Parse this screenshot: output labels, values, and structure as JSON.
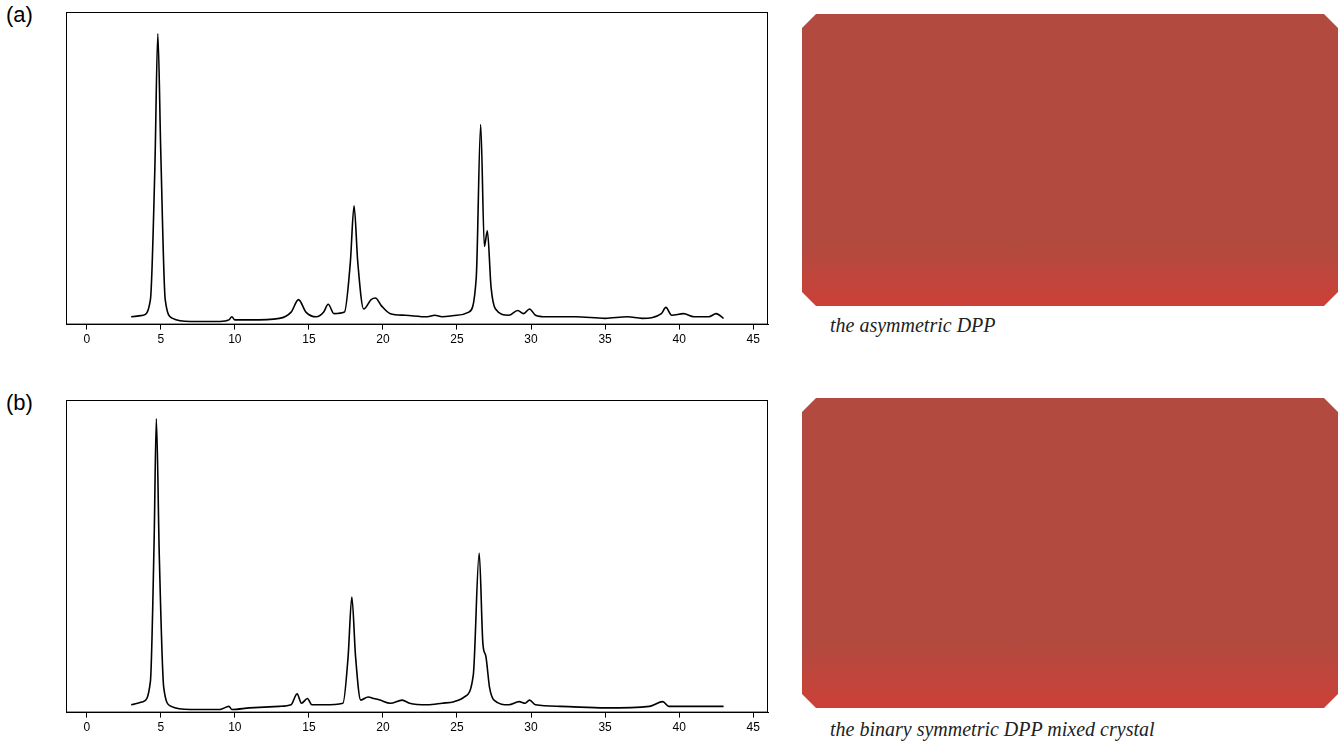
{
  "chart_data": [
    {
      "type": "line",
      "panel": "(a)",
      "color": "#000000",
      "x": [
        3.0,
        3.8,
        4.3,
        4.6,
        4.8,
        5.0,
        5.3,
        5.8,
        7.0,
        9.0,
        9.6,
        9.8,
        10.0,
        11.0,
        13.0,
        13.8,
        14.3,
        14.8,
        15.5,
        16.0,
        16.3,
        16.7,
        17.4,
        17.8,
        18.05,
        18.3,
        18.7,
        19.2,
        19.5,
        19.9,
        20.5,
        21.5,
        23.0,
        23.5,
        24.0,
        25.0,
        25.8,
        26.3,
        26.6,
        26.85,
        27.05,
        27.3,
        27.6,
        28.5,
        29.1,
        29.5,
        29.9,
        30.3,
        31.0,
        33.0,
        35.0,
        36.5,
        37.5,
        38.8,
        39.1,
        39.5,
        40.3,
        41.0,
        42.0,
        42.5,
        43.0
      ],
      "values": [
        2.5,
        3,
        8,
        50,
        93,
        55,
        8,
        2,
        1,
        1,
        1.5,
        2.5,
        1.5,
        1.5,
        2,
        4,
        8,
        4,
        2.5,
        4,
        6.5,
        3.5,
        4,
        20,
        38,
        20,
        5,
        8,
        8.5,
        6,
        3.5,
        3,
        2.5,
        3,
        2.5,
        3,
        4,
        15,
        64,
        25,
        30,
        12,
        5,
        3,
        4.5,
        3.5,
        5,
        3,
        2.5,
        2.5,
        2,
        2.5,
        2,
        3.5,
        5.5,
        3,
        3.5,
        2.5,
        2.5,
        3.5,
        2
      ],
      "xlim": [
        -1.4,
        46
      ],
      "xticks": [
        0,
        5,
        10,
        15,
        20,
        25,
        30,
        35,
        40,
        45
      ],
      "ylim": [
        0,
        100
      ],
      "grid": false,
      "tick_labels": "x"
    },
    {
      "type": "line",
      "panel": "(b)",
      "color": "#000000",
      "x": [
        3.0,
        3.8,
        4.3,
        4.55,
        4.7,
        4.9,
        5.2,
        5.7,
        7.0,
        9.0,
        9.6,
        9.8,
        11.0,
        13.0,
        13.8,
        14.2,
        14.5,
        14.9,
        15.2,
        16.0,
        17.3,
        17.65,
        17.9,
        18.15,
        18.5,
        19.0,
        19.4,
        19.8,
        20.5,
        21.3,
        21.8,
        23.0,
        24.0,
        24.8,
        25.5,
        26.1,
        26.5,
        26.75,
        26.95,
        27.2,
        27.5,
        28.5,
        29.2,
        29.6,
        29.9,
        30.3,
        32.0,
        35.0,
        38.0,
        38.9,
        39.3,
        40.5,
        41.0,
        43.0
      ],
      "values": [
        2.5,
        3.5,
        10,
        55,
        94,
        50,
        8,
        2,
        1,
        1,
        2,
        1,
        1.5,
        2,
        2.5,
        6,
        3,
        4.5,
        2.5,
        2.5,
        3,
        18,
        37,
        18,
        4,
        5,
        4.5,
        4,
        3,
        4,
        3,
        2.5,
        3,
        3.5,
        5,
        12,
        51,
        22,
        18,
        8,
        4,
        2.5,
        3.5,
        3,
        4,
        2.5,
        2,
        1.5,
        2,
        3.5,
        2,
        2,
        2,
        2
      ],
      "xlim": [
        -1.4,
        46
      ],
      "xticks": [
        0,
        5,
        10,
        15,
        20,
        25,
        30,
        35,
        40,
        45
      ],
      "ylim": [
        0,
        100
      ],
      "grid": false,
      "tick_labels": "x"
    }
  ],
  "swatches": [
    {
      "caption": "the asymmetric DPP",
      "color": "#b34a3f"
    },
    {
      "caption": "the binary symmetric DPP mixed crystal",
      "color": "#b34a3f"
    }
  ]
}
